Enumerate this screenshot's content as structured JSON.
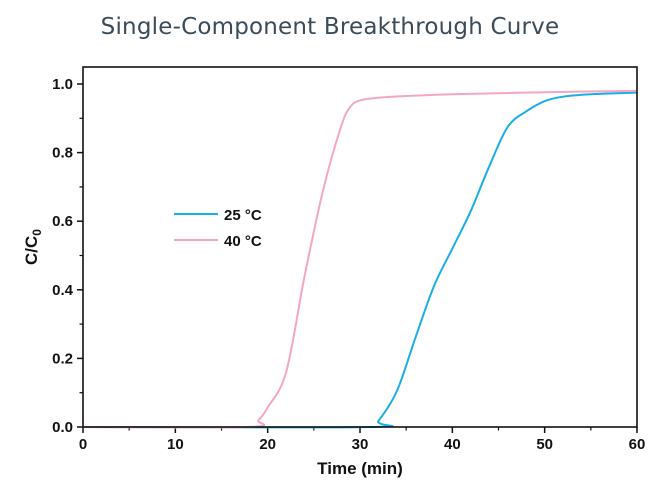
{
  "chart_data": {
    "type": "line",
    "title": "Single-Component Breakthrough Curve",
    "xlabel": "Time (min)",
    "ylabel": "C/C0",
    "xlim": [
      0,
      60
    ],
    "ylim": [
      0,
      1.05
    ],
    "xticks": [
      0,
      10,
      20,
      30,
      40,
      50,
      60
    ],
    "yticks": [
      0.0,
      0.2,
      0.4,
      0.6,
      0.8,
      1.0
    ],
    "xtick_labels": [
      "0",
      "10",
      "20",
      "30",
      "40",
      "50",
      "60"
    ],
    "ytick_labels": [
      "0.0",
      "0.2",
      "0.4",
      "0.6",
      "0.8",
      "1.0"
    ],
    "grid": false,
    "legend_position": "center-left",
    "series": [
      {
        "name": "25 °C",
        "color": "#1aaee5",
        "x": [
          0,
          31,
          32,
          34,
          36,
          38,
          40,
          42,
          44,
          46,
          48,
          50,
          52,
          55,
          60
        ],
        "y": [
          0,
          0,
          0.018,
          0.105,
          0.26,
          0.41,
          0.52,
          0.63,
          0.76,
          0.875,
          0.92,
          0.95,
          0.963,
          0.97,
          0.975
        ]
      },
      {
        "name": "40 °C",
        "color": "#f4a7c4",
        "x": [
          0,
          18,
          19,
          20,
          22,
          24,
          26,
          28,
          29,
          30,
          32,
          35,
          40,
          50,
          60
        ],
        "y": [
          0,
          0,
          0.02,
          0.057,
          0.16,
          0.44,
          0.69,
          0.88,
          0.935,
          0.952,
          0.96,
          0.965,
          0.97,
          0.976,
          0.98
        ]
      }
    ]
  }
}
